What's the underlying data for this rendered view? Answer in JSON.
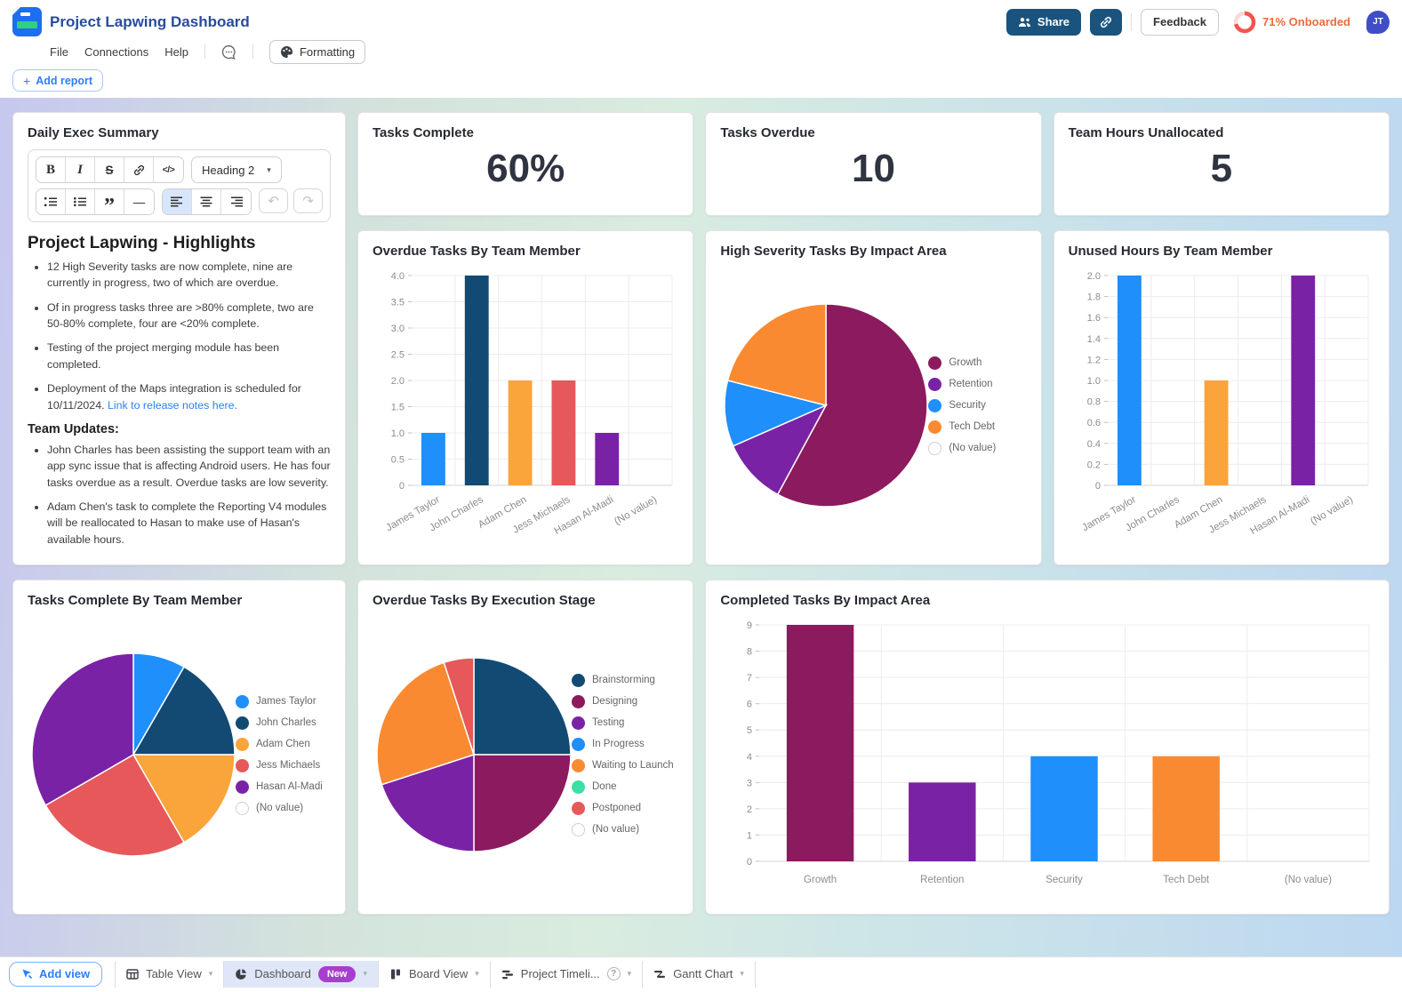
{
  "header": {
    "title": "Project Lapwing Dashboard",
    "menu": [
      "File",
      "Connections",
      "Help"
    ],
    "formatting_label": "Formatting",
    "share_label": "Share",
    "feedback_label": "Feedback",
    "onboarded_label": "71% Onboarded",
    "onboarded_percent": 71,
    "avatar_initials": "JT"
  },
  "toolbar": {
    "add_report_label": "Add report"
  },
  "summary_card": {
    "title": "Daily Exec Summary",
    "editor": {
      "heading_select": "Heading 2"
    },
    "heading": "Project Lapwing - Highlights",
    "bullets": [
      {
        "text": "12 High Severity tasks are now complete, nine are currently in progress, two of which are overdue."
      },
      {
        "text": "Of in progress tasks three are >80% complete,  two are 50-80% complete, four are <20% complete."
      },
      {
        "text": "Testing of the project merging module has been completed."
      },
      {
        "text": "Deployment of the Maps integration is scheduled for 10/11/2024. ",
        "link": "Link to release notes here."
      }
    ],
    "subheading": "Team Updates:",
    "team_bullets": [
      {
        "text": "John Charles has been assisting the support team with an app sync issue that is affecting Android users. He has four tasks overdue as a result. Overdue tasks are low severity."
      },
      {
        "text": "Adam Chen's task to complete the Reporting V4 modules will be reallocated to Hasan to make use of Hasan's available hours."
      }
    ]
  },
  "kpis": [
    {
      "label": "Tasks Complete",
      "value": "60%"
    },
    {
      "label": "Tasks Overdue",
      "value": "10"
    },
    {
      "label": "Team Hours Unallocated",
      "value": "5"
    }
  ],
  "chart_data": [
    {
      "id": "overdue_by_member",
      "type": "bar",
      "title": "Overdue Tasks By Team Member",
      "categories": [
        "James Taylor",
        "John Charles",
        "Adam Chen",
        "Jess Michaels",
        "Hasan Al-Madi",
        "(No value)"
      ],
      "values": [
        1,
        4,
        2,
        2,
        1,
        0
      ],
      "colors": [
        "#1e8ffb",
        "#134a73",
        "#faa43c",
        "#e65859",
        "#7a22a5",
        "#cccccc"
      ],
      "ylim": [
        0,
        4
      ],
      "ystep": 0.5,
      "tick_format": "dec1",
      "rotate_labels": true,
      "grid": true
    },
    {
      "id": "high_severity_by_impact",
      "type": "pie",
      "title": "High Severity Tasks By Impact Area",
      "labels": [
        "Growth",
        "Retention",
        "Security",
        "Tech Debt",
        "(No value)"
      ],
      "values": [
        11,
        2,
        2,
        4,
        0
      ],
      "colors": [
        "#8c1a5e",
        "#7a22a5",
        "#1e8ffb",
        "#fa8a31",
        "#ffffff"
      ],
      "legend_position": "right"
    },
    {
      "id": "unused_hours_by_member",
      "type": "bar",
      "title": "Unused Hours By Team Member",
      "categories": [
        "James Taylor",
        "John Charles",
        "Adam Chen",
        "Jess Michaels",
        "Hasan Al-Madi",
        "(No value)"
      ],
      "values": [
        2,
        0,
        1,
        0,
        2,
        0
      ],
      "colors": [
        "#1e8ffb",
        "#134a73",
        "#faa43c",
        "#e65859",
        "#7a22a5",
        "#cccccc"
      ],
      "ylim": [
        0,
        2
      ],
      "ystep": 0.2,
      "tick_format": "dec1",
      "rotate_labels": true,
      "grid": true
    },
    {
      "id": "tasks_complete_by_member",
      "type": "pie",
      "title": "Tasks Complete By Team Member",
      "labels": [
        "James Taylor",
        "John Charles",
        "Adam Chen",
        "Jess Michaels",
        "Hasan Al-Madi",
        "(No value)"
      ],
      "values": [
        1,
        2,
        2,
        3,
        4,
        0
      ],
      "colors": [
        "#1e8ffb",
        "#134a73",
        "#faa43c",
        "#e65859",
        "#7a22a5",
        "#ffffff"
      ],
      "legend_position": "right"
    },
    {
      "id": "overdue_by_stage",
      "type": "pie",
      "title": "Overdue Tasks By Execution Stage",
      "labels": [
        "Brainstorming",
        "Designing",
        "Testing",
        "In Progress",
        "Waiting to Launch",
        "Done",
        "Postponed",
        "(No value)"
      ],
      "values": [
        5,
        5,
        4,
        0,
        5,
        0,
        1,
        0
      ],
      "colors": [
        "#134a73",
        "#8c1a5e",
        "#7a22a5",
        "#1e8ffb",
        "#fa8a31",
        "#3bdfa5",
        "#e65859",
        "#ffffff"
      ],
      "legend_position": "right"
    },
    {
      "id": "completed_by_impact",
      "type": "bar",
      "title": "Completed Tasks By Impact Area",
      "categories": [
        "Growth",
        "Retention",
        "Security",
        "Tech Debt",
        "(No value)"
      ],
      "values": [
        9,
        3,
        4,
        4,
        0
      ],
      "colors": [
        "#8c1a5e",
        "#7a22a5",
        "#1e8ffb",
        "#fa8a31",
        "#cccccc"
      ],
      "ylim": [
        0,
        9
      ],
      "ystep": 1,
      "tick_format": "int",
      "rotate_labels": false,
      "grid": true
    }
  ],
  "footer": {
    "add_view_label": "Add view",
    "tabs": [
      {
        "label": "Table View",
        "icon": "table"
      },
      {
        "label": "Dashboard",
        "icon": "dashboard",
        "badge": "New",
        "active": true
      },
      {
        "label": "Board View",
        "icon": "board"
      },
      {
        "label": "Project Timeli...",
        "icon": "timeline",
        "help": true
      },
      {
        "label": "Gantt Chart",
        "icon": "gantt"
      }
    ]
  },
  "colors": {
    "accent_blue": "#2d7ff9",
    "title_blue": "#2a4b9b",
    "share_button": "#1a537d",
    "onboard_ring": "#f2544d",
    "onboard_text": "#ee6a3d",
    "new_badge": "#a83dd1",
    "active_tab_bg": "#dfe6f7"
  }
}
